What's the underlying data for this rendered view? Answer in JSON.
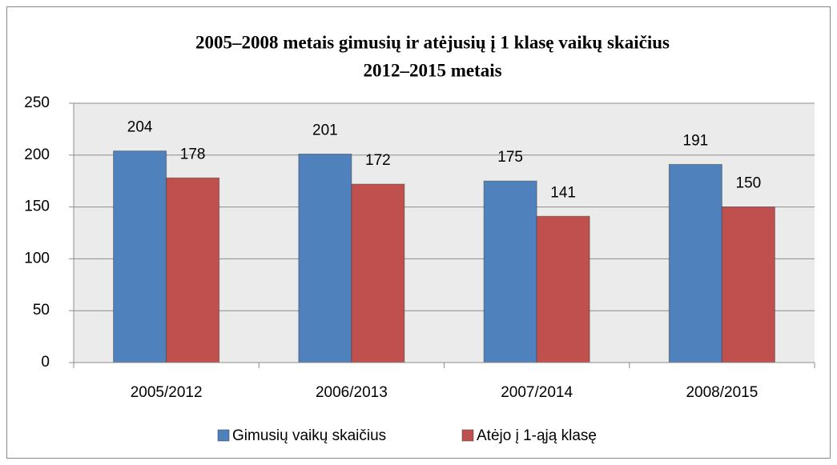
{
  "chart_data": {
    "type": "bar",
    "title": [
      "2005–2008 metais gimusių ir atėjusių į 1 klasę vaikų skaičius",
      "2012–2015 metais"
    ],
    "categories": [
      "2005/2012",
      "2006/2013",
      "2007/2014",
      "2008/2015"
    ],
    "series": [
      {
        "name": "Gimusių vaikų skaičius",
        "color": "#4f81bd",
        "values": [
          204,
          201,
          175,
          191
        ]
      },
      {
        "name": "Atėjo į 1-ąją klasę",
        "color": "#c0504d",
        "values": [
          178,
          172,
          141,
          150
        ]
      }
    ],
    "ylim": [
      0,
      250
    ],
    "yticks": [
      0,
      50,
      100,
      150,
      200,
      250
    ],
    "grid": true,
    "legend": "bottom"
  }
}
